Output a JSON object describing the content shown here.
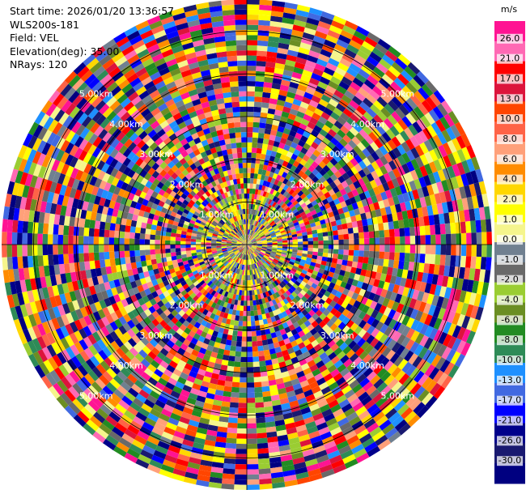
{
  "header": {
    "start_time": "Start time: 2026/01/20 13:36:57",
    "instrument": "WLS200s-181",
    "field": "Field: VEL",
    "elevation": "Elevation(deg): 35.00",
    "nrays": "NRays: 120"
  },
  "chart_data": {
    "type": "heatmap",
    "projection": "polar-ppi",
    "field": "VEL",
    "units": "m/s",
    "n_rays": 120,
    "elevation_deg": 35.0,
    "range_rings_km": [
      1.0,
      2.0,
      3.0,
      4.0,
      5.0
    ],
    "range_ring_labels": [
      "1.00km",
      "2.00km",
      "3.00km",
      "4.00km",
      "5.00km"
    ],
    "colorbar": {
      "unit_label": "m/s",
      "ticks": [
        "26.0",
        "21.0",
        "17.0",
        "13.0",
        "10.0",
        "8.0",
        "6.0",
        "4.0",
        "2.0",
        "1.0",
        "0.0",
        "-1.0",
        "-2.0",
        "-4.0",
        "-6.0",
        "-8.0",
        "-10.0",
        "-13.0",
        "-17.0",
        "-21.0",
        "-26.0",
        "-30.0"
      ],
      "colors": [
        "#ff1493",
        "#ff69b4",
        "#ff0000",
        "#dc143c",
        "#ff4500",
        "#ff6347",
        "#ffa07a",
        "#ff8c00",
        "#ffd700",
        "#ffff00",
        "#f5f58c",
        "#708090",
        "#696969",
        "#9acd32",
        "#6b8e23",
        "#228b22",
        "#2e8b57",
        "#1e90ff",
        "#4169e1",
        "#0000ff",
        "#00008b",
        "#191970",
        "#000080"
      ]
    }
  }
}
